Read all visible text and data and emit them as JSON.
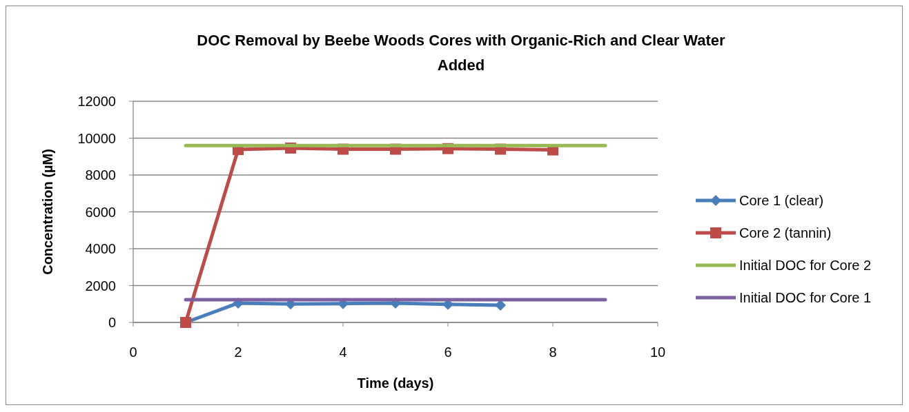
{
  "chart_data": {
    "type": "line",
    "title": "DOC Removal by Beebe Woods Cores with Organic-Rich and Clear Water Added",
    "xlabel": "Time (days)",
    "ylabel": "Concentration (µM)",
    "xlim": [
      0,
      10
    ],
    "xticks": [
      0,
      2,
      4,
      6,
      8,
      10
    ],
    "ylim": [
      0,
      12000
    ],
    "yticks": [
      0,
      2000,
      4000,
      6000,
      8000,
      10000,
      12000
    ],
    "grid": "y",
    "legend": "right",
    "series": [
      {
        "name": "Core 1 (clear)",
        "color": "#4a7ebb",
        "marker": "diamond",
        "x": [
          1,
          2,
          3,
          4,
          5,
          6,
          7
        ],
        "values": [
          0,
          1050,
          1000,
          1020,
          1050,
          980,
          930
        ]
      },
      {
        "name": "Core 2 (tannin)",
        "color": "#be4b48",
        "marker": "square",
        "x": [
          1,
          2,
          3,
          4,
          5,
          6,
          7,
          8
        ],
        "values": [
          0,
          9380,
          9460,
          9400,
          9400,
          9430,
          9400,
          9360
        ]
      },
      {
        "name": "Initial DOC for Core 2",
        "color": "#98b954",
        "marker": "none",
        "x": [
          1,
          9
        ],
        "values": [
          9600,
          9600
        ]
      },
      {
        "name": "Initial DOC for Core 1",
        "color": "#7d60a0",
        "marker": "none",
        "x": [
          1,
          9
        ],
        "values": [
          1230,
          1230
        ]
      }
    ]
  }
}
